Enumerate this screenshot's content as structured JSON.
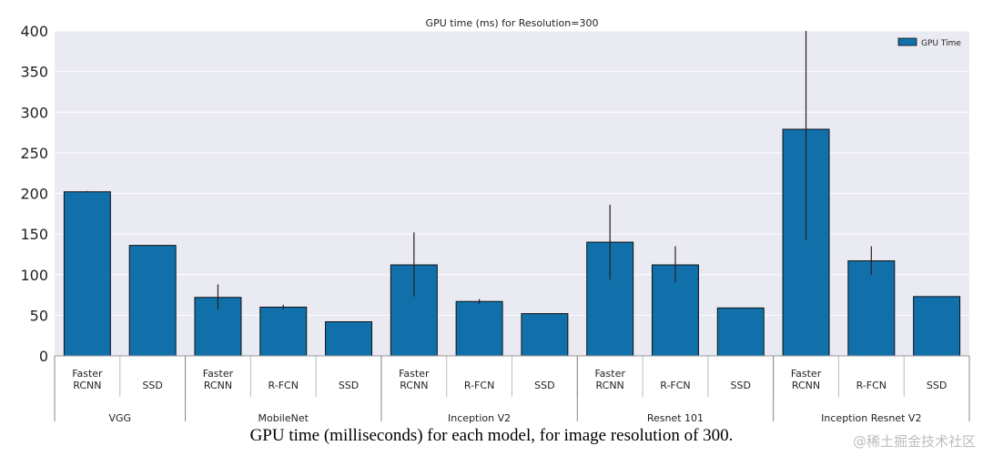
{
  "chart_data": {
    "type": "bar",
    "title": "GPU time (ms) for Resolution=300",
    "ylim": [
      0,
      400
    ],
    "yticks": [
      0,
      50,
      100,
      150,
      200,
      250,
      300,
      350,
      400
    ],
    "grid": true,
    "legend": {
      "position": "top-right",
      "entries": [
        "GPU Time"
      ]
    },
    "groups": [
      {
        "label": "VGG",
        "bars": [
          {
            "label": [
              "Faster",
              "RCNN"
            ],
            "value": 202,
            "err": [
              201,
              203
            ]
          },
          {
            "label": [
              "SSD"
            ],
            "value": 136,
            "err": null
          }
        ]
      },
      {
        "label": "MobileNet",
        "bars": [
          {
            "label": [
              "Faster",
              "RCNN"
            ],
            "value": 72,
            "err": [
              57,
              88
            ]
          },
          {
            "label": [
              "R-FCN"
            ],
            "value": 60,
            "err": [
              57,
              63
            ]
          },
          {
            "label": [
              "SSD"
            ],
            "value": 42,
            "err": null
          }
        ]
      },
      {
        "label": "Inception V2",
        "bars": [
          {
            "label": [
              "Faster",
              "RCNN"
            ],
            "value": 112,
            "err": [
              73,
              152
            ]
          },
          {
            "label": [
              "R-FCN"
            ],
            "value": 67,
            "err": [
              64,
              70
            ]
          },
          {
            "label": [
              "SSD"
            ],
            "value": 52,
            "err": null
          }
        ]
      },
      {
        "label": "Resnet 101",
        "bars": [
          {
            "label": [
              "Faster",
              "RCNN"
            ],
            "value": 140,
            "err": [
              94,
              186
            ]
          },
          {
            "label": [
              "R-FCN"
            ],
            "value": 112,
            "err": [
              91,
              135
            ]
          },
          {
            "label": [
              "SSD"
            ],
            "value": 59,
            "err": null
          }
        ]
      },
      {
        "label": "Inception Resnet V2",
        "bars": [
          {
            "label": [
              "Faster",
              "RCNN"
            ],
            "value": 279,
            "err": [
              143,
              400
            ]
          },
          {
            "label": [
              "R-FCN"
            ],
            "value": 117,
            "err": [
              100,
              135
            ]
          },
          {
            "label": [
              "SSD"
            ],
            "value": 73,
            "err": null
          }
        ]
      }
    ],
    "series": [
      {
        "name": "GPU Time",
        "color": "#1170aa"
      }
    ]
  },
  "caption": "GPU time (milliseconds) for each model, for image resolution of 300.",
  "watermark": "@稀土掘金技术社区"
}
